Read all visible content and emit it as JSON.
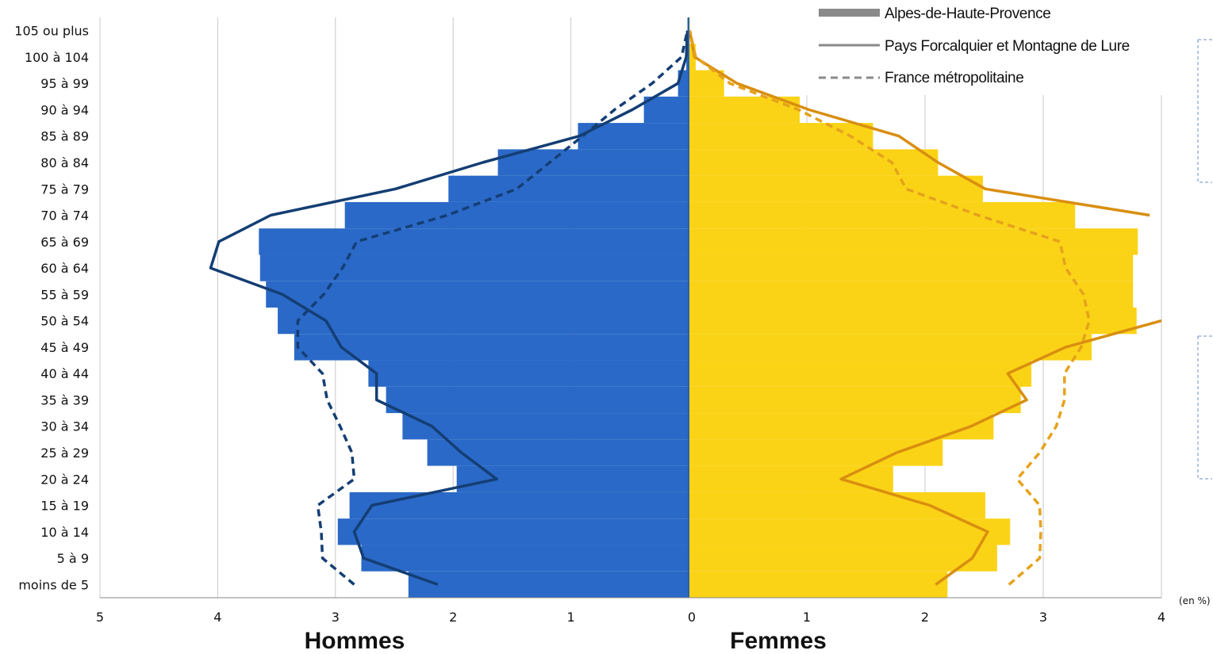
{
  "chart_data": {
    "type": "bar",
    "subtype": "population-pyramid",
    "categories": [
      "moins de 5",
      "5 à 9",
      "10 à 14",
      "15 à 19",
      "20 à 24",
      "25 à 29",
      "30 à 34",
      "35 à 39",
      "40 à 44",
      "45 à 49",
      "50 à 54",
      "55 à 59",
      "60 à 64",
      "65 à 69",
      "70 à 74",
      "75 à 79",
      "80 à 84",
      "85 à 89",
      "90 à 94",
      "95 à 99",
      "100 à 104",
      "105 ou plus"
    ],
    "left_xlim": [
      0,
      5
    ],
    "right_xlim": [
      0,
      4
    ],
    "x_ticks_left": [
      "5",
      "4",
      "3",
      "2",
      "1"
    ],
    "x_ticks_right": [
      "0",
      "1",
      "2",
      "3",
      "4"
    ],
    "unit_label": "(en %)",
    "left_label": "Hommes",
    "right_label": "Femmes",
    "legend_position": "top-right",
    "grid": true,
    "series": [
      {
        "name": "Alpes-de-Haute-Provence",
        "style": "bars",
        "men": [
          2.38,
          2.78,
          2.98,
          2.88,
          1.97,
          2.22,
          2.43,
          2.57,
          2.72,
          3.35,
          3.49,
          3.59,
          3.64,
          3.65,
          2.92,
          2.04,
          1.62,
          0.94,
          0.38,
          0.09,
          0.02,
          0.01
        ],
        "women": [
          2.19,
          2.61,
          2.72,
          2.51,
          1.73,
          2.15,
          2.58,
          2.81,
          2.9,
          3.41,
          3.79,
          3.76,
          3.76,
          3.8,
          3.27,
          2.49,
          2.11,
          1.56,
          0.94,
          0.3,
          0.06,
          0.01
        ]
      },
      {
        "name": "Pays Forcalquier et Montagne de Lure",
        "style": "solid-line",
        "men": [
          2.13,
          2.76,
          2.84,
          2.69,
          1.63,
          1.93,
          2.18,
          2.65,
          2.65,
          2.95,
          3.08,
          3.45,
          4.06,
          3.99,
          3.55,
          2.49,
          1.75,
          0.93,
          0.48,
          0.09,
          0.02,
          0.01
        ],
        "women": [
          2.09,
          2.4,
          2.53,
          2.04,
          1.29,
          1.76,
          2.39,
          2.86,
          2.7,
          3.19,
          4.0,
          null,
          null,
          null,
          3.9,
          2.51,
          2.11,
          1.78,
          1.02,
          0.41,
          0.05,
          0.01
        ]
      },
      {
        "name": "France métropolitaine",
        "style": "dashed-line",
        "men": [
          2.84,
          3.11,
          3.12,
          3.15,
          2.84,
          2.86,
          2.96,
          3.07,
          3.11,
          3.32,
          3.32,
          3.1,
          2.94,
          2.82,
          2.05,
          1.46,
          1.18,
          0.9,
          0.63,
          0.31,
          0.06,
          0.01
        ],
        "women": [
          2.71,
          2.97,
          2.98,
          2.97,
          2.78,
          2.97,
          3.11,
          3.18,
          3.18,
          3.32,
          3.39,
          3.34,
          3.19,
          3.14,
          2.45,
          1.84,
          1.72,
          1.37,
          0.93,
          0.35,
          0.06,
          0.01
        ]
      }
    ]
  }
}
